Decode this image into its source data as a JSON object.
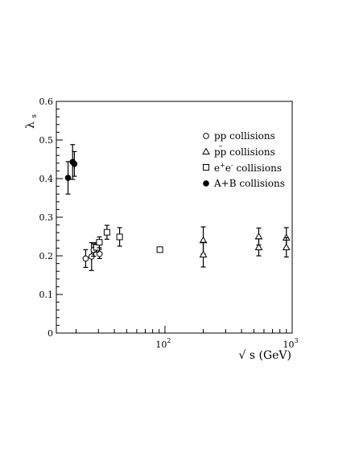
{
  "chart_data": {
    "type": "scatter",
    "title": "",
    "xlabel": "√ s (GeV)",
    "ylabel": "λs",
    "ylabel_main": "λ",
    "ylabel_sub": "s",
    "xscale": "log",
    "xlim": [
      14,
      1000
    ],
    "ylim": [
      0,
      0.6
    ],
    "grid": false,
    "legend_position": "top-right",
    "x_ticks": [
      {
        "value": 100,
        "base": "10",
        "exp": "2"
      },
      {
        "value": 1000,
        "base": "10",
        "exp": "3"
      }
    ],
    "y_ticks": [
      {
        "value": 0,
        "label": "0"
      },
      {
        "value": 0.1,
        "label": "0.1"
      },
      {
        "value": 0.2,
        "label": "0.2"
      },
      {
        "value": 0.3,
        "label": "0.3"
      },
      {
        "value": 0.4,
        "label": "0.4"
      },
      {
        "value": 0.5,
        "label": "0.5"
      },
      {
        "value": 0.6,
        "label": "0.6"
      }
    ],
    "series": [
      {
        "name": "pp collisions",
        "legend_main": "pp collisions",
        "legend_sup": "",
        "marker": "open-circle",
        "points": [
          {
            "x": 23.8,
            "y": 0.193,
            "err": 0.023
          },
          {
            "x": 26.5,
            "y": 0.198,
            "err": 0.036
          },
          {
            "x": 27.5,
            "y": 0.215,
            "err": 0.016
          },
          {
            "x": 30.6,
            "y": 0.205,
            "err": 0.012
          }
        ]
      },
      {
        "name": "pp̄ collisions",
        "legend_main": "pp collisions",
        "legend_sup": "–",
        "marker": "open-triangle",
        "points": [
          {
            "x": 200,
            "y": 0.24,
            "err": 0.035
          },
          {
            "x": 200,
            "y": 0.203,
            "err": 0.032
          },
          {
            "x": 546,
            "y": 0.25,
            "err": 0.022
          },
          {
            "x": 546,
            "y": 0.222,
            "err": 0.022
          },
          {
            "x": 900,
            "y": 0.247,
            "err": 0.026
          },
          {
            "x": 900,
            "y": 0.222,
            "err": 0.025
          }
        ]
      },
      {
        "name": "e⁺e⁻ collisions",
        "legend_main": "e",
        "legend_sup": "+",
        "legend_main2": "e",
        "legend_sup2": "-",
        "legend_tail": " collisions",
        "marker": "open-square",
        "points": [
          {
            "x": 29,
            "y": 0.222,
            "err": 0.012
          },
          {
            "x": 30.5,
            "y": 0.235,
            "err": 0.014
          },
          {
            "x": 35,
            "y": 0.261,
            "err": 0.018
          },
          {
            "x": 44,
            "y": 0.249,
            "err": 0.024
          },
          {
            "x": 91.2,
            "y": 0.216,
            "err": 0.006
          }
        ]
      },
      {
        "name": "A+B collisions",
        "legend_main": "A+B collisions",
        "legend_sup": "",
        "marker": "filled-circle",
        "points": [
          {
            "x": 17.3,
            "y": 0.402,
            "err": 0.042
          },
          {
            "x": 18.8,
            "y": 0.443,
            "err": 0.045
          },
          {
            "x": 19.4,
            "y": 0.438,
            "err": 0.032
          }
        ]
      }
    ]
  }
}
